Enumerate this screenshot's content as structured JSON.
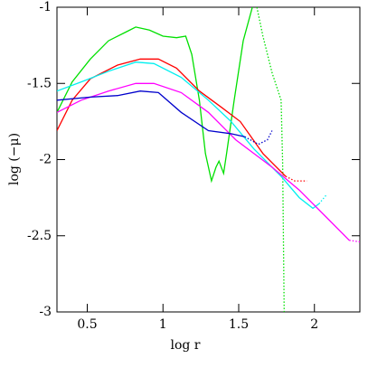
{
  "chart_data": {
    "type": "line",
    "xlabel": "log r",
    "ylabel": "log (−μ)",
    "xlim": [
      0.3,
      2.3
    ],
    "xticks": [
      0.5,
      1,
      1.5,
      2
    ],
    "ylim": [
      -3,
      -1
    ],
    "yticks": [
      -3,
      -2.5,
      -2,
      -1.5,
      -1
    ],
    "series": [
      {
        "color": "#00e000",
        "dash": "solid",
        "x": [
          0.3,
          0.4,
          0.52,
          0.64,
          0.76,
          0.82,
          0.91,
          1.0,
          1.09,
          1.15,
          1.19,
          1.24,
          1.28,
          1.32,
          1.35,
          1.37,
          1.4,
          1.42,
          1.47,
          1.53,
          1.59
        ],
        "values": [
          -1.69,
          -1.49,
          -1.34,
          -1.22,
          -1.16,
          -1.13,
          -1.15,
          -1.19,
          -1.2,
          -1.19,
          -1.31,
          -1.61,
          -1.96,
          -2.14,
          -2.05,
          -2.01,
          -2.09,
          -1.96,
          -1.61,
          -1.22,
          -1.0
        ]
      },
      {
        "color": "#00e000",
        "dash": "dotted",
        "x": [
          1.62,
          1.66,
          1.72,
          1.75,
          1.78,
          1.79,
          1.8
        ],
        "values": [
          -1.0,
          -1.19,
          -1.43,
          -1.52,
          -1.61,
          -2.02,
          -3.0
        ]
      },
      {
        "color": "#ff0000",
        "dash": "solid",
        "x": [
          0.3,
          0.4,
          0.52,
          0.7,
          0.85,
          0.97,
          1.09,
          1.24,
          1.39,
          1.51,
          1.66,
          1.81
        ],
        "values": [
          -1.81,
          -1.61,
          -1.47,
          -1.38,
          -1.34,
          -1.34,
          -1.4,
          -1.55,
          -1.66,
          -1.75,
          -1.96,
          -2.11
        ]
      },
      {
        "color": "#ff0000",
        "dash": "dotted",
        "x": [
          1.81,
          1.87,
          1.95
        ],
        "values": [
          -2.11,
          -2.14,
          -2.14
        ]
      },
      {
        "color": "#00f0f0",
        "dash": "solid",
        "x": [
          0.3,
          0.46,
          0.64,
          0.82,
          0.94,
          1.12,
          1.3,
          1.45,
          1.6,
          1.78,
          1.9,
          1.99,
          2.03
        ],
        "values": [
          -1.55,
          -1.49,
          -1.42,
          -1.36,
          -1.37,
          -1.46,
          -1.61,
          -1.75,
          -1.93,
          -2.11,
          -2.25,
          -2.32,
          -2.29
        ]
      },
      {
        "color": "#00f0f0",
        "dash": "dotted",
        "x": [
          2.03,
          2.08
        ],
        "values": [
          -2.29,
          -2.23
        ]
      },
      {
        "color": "#ff00ff",
        "dash": "solid",
        "x": [
          0.3,
          0.46,
          0.64,
          0.82,
          0.94,
          1.12,
          1.3,
          1.48,
          1.72,
          1.9,
          2.08,
          2.23
        ],
        "values": [
          -1.69,
          -1.61,
          -1.55,
          -1.5,
          -1.5,
          -1.56,
          -1.69,
          -1.87,
          -2.05,
          -2.2,
          -2.38,
          -2.53
        ]
      },
      {
        "color": "#ff00ff",
        "dash": "dotted",
        "x": [
          2.23,
          2.3
        ],
        "values": [
          -2.53,
          -2.54
        ]
      },
      {
        "color": "#0000cc",
        "dash": "solid",
        "x": [
          0.3,
          0.52,
          0.7,
          0.85,
          0.97,
          1.12,
          1.3,
          1.45,
          1.54
        ],
        "values": [
          -1.61,
          -1.59,
          -1.58,
          -1.55,
          -1.56,
          -1.69,
          -1.81,
          -1.83,
          -1.85
        ]
      },
      {
        "color": "#0000cc",
        "dash": "dotted",
        "x": [
          1.54,
          1.63,
          1.69,
          1.72
        ],
        "values": [
          -1.85,
          -1.9,
          -1.87,
          -1.81
        ]
      }
    ]
  }
}
